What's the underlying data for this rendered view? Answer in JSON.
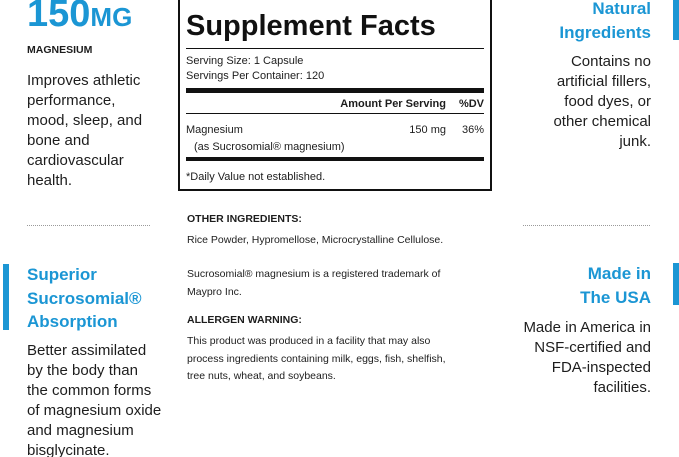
{
  "left": {
    "top": {
      "value": "150",
      "unit": "MG",
      "label": "MAGNESIUM",
      "lines": [
        "Improves athletic",
        "performance,",
        "mood, sleep, and",
        "bone and",
        "cardiovascular",
        "health."
      ]
    },
    "bottom": {
      "title": [
        "Superior",
        "Sucrosomial®",
        "Absorption"
      ],
      "lines": [
        "Better assimilated",
        "by the body than",
        "the common forms",
        "of magnesium oxide",
        "and magnesium",
        "bisglycinate."
      ]
    }
  },
  "right": {
    "top": {
      "title": [
        "Natural",
        "Ingredients"
      ],
      "lines": [
        "Contains no",
        "artificial fillers,",
        "food dyes, or",
        "other chemical",
        "junk."
      ]
    },
    "bottom": {
      "title": [
        "Made in",
        "The USA"
      ],
      "lines": [
        "Made in America in",
        "NSF-certified and",
        "FDA-inspected",
        "facilities."
      ]
    }
  },
  "facts": {
    "title": "Supplement Facts",
    "serving_size": "Serving Size: 1 Capsule",
    "servings": "Servings Per Container: 120",
    "amount_header": "Amount Per Serving",
    "dv_header": "%DV",
    "rows": [
      {
        "name": "Magnesium",
        "amount": "150 mg",
        "dv": "36%",
        "source": "(as Sucrosomial® magnesium)"
      }
    ],
    "footnote": "*Daily Value not established."
  },
  "other": {
    "heading": "OTHER INGREDIENTS:",
    "text": "Rice Powder, Hypromellose, Microcrystalline Cellulose."
  },
  "trademark": [
    "Sucrosomial® magnesium is a registered trademark of",
    "Maypro Inc."
  ],
  "allergen": {
    "heading": "ALLERGEN WARNING:",
    "lines": [
      "This product was produced in a facility that may also",
      "process ingredients containing milk, eggs, fish, shelfish,",
      "tree nuts, wheat, and soybeans."
    ]
  }
}
